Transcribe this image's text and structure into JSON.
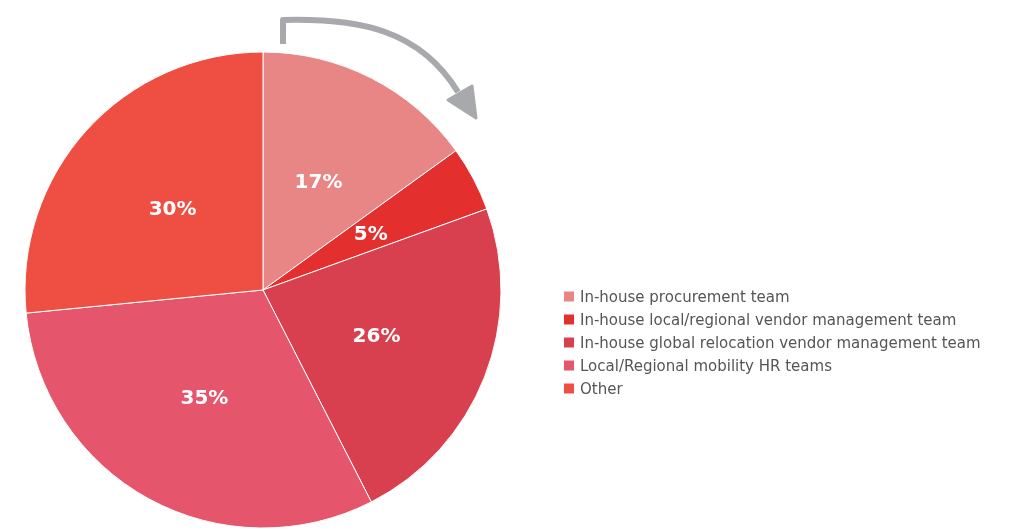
{
  "chart_data": {
    "type": "pie",
    "categories": [
      "In-house procurement team",
      "In-house local/regional vendor management team",
      "In-house global relocation vendor management team",
      "Local/Regional mobility HR teams",
      "Other"
    ],
    "values": [
      17,
      5,
      26,
      35,
      30
    ],
    "colors": [
      "#e88585",
      "#e3302e",
      "#d84050",
      "#e5556b",
      "#ef4f42"
    ],
    "value_labels": [
      "17%",
      "5%",
      "26%",
      "35%",
      "30%"
    ],
    "legend": "right"
  }
}
